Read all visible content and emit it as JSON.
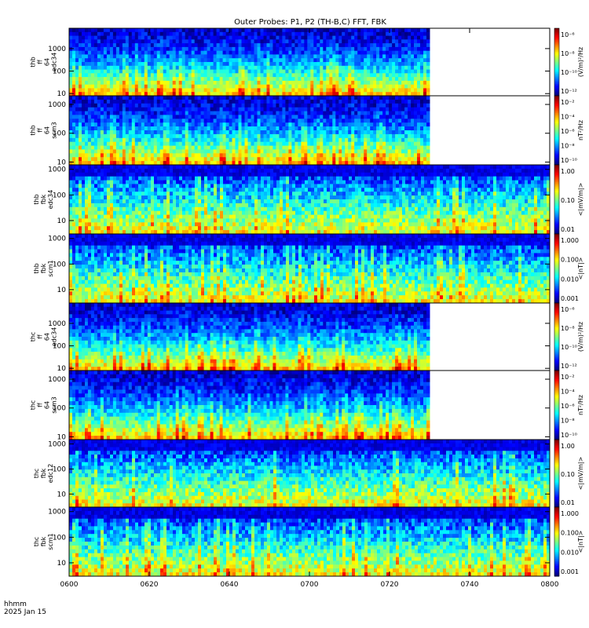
{
  "colors": {
    "background": "#ffffff",
    "frame": "#000000"
  },
  "chart_data": {
    "type": "heatmap",
    "title": "Outer Probes: P1, P2 (TH-B,C) FFT, FBK",
    "x_tick_labels": [
      "0600",
      "0620",
      "0640",
      "0700",
      "0720",
      "0740",
      "0800"
    ],
    "time_range": [
      "06:00",
      "08:00"
    ],
    "x_corner_label_1": "hhmm",
    "x_corner_label_2": "2025 Jan 15",
    "colormap": "rainbow",
    "panels": [
      {
        "ylabel": [
          "thb",
          "ff",
          "64",
          "edc34"
        ],
        "yscale": "log",
        "ylim": [
          8,
          8000
        ],
        "yticks": [
          "10",
          "100",
          "1000"
        ],
        "cbar_label": "(V/m)²/Hz",
        "cbar_scale": "log",
        "cbar_ticks": [
          "10⁻⁶",
          "10⁻⁸",
          "10⁻¹⁰",
          "10⁻¹²"
        ],
        "data_end": "07:30"
      },
      {
        "ylabel": [
          "thb",
          "ff",
          "64",
          "scm3"
        ],
        "yscale": "log",
        "ylim": [
          8,
          2000
        ],
        "yticks": [
          "10",
          "100",
          "1000"
        ],
        "cbar_label": "nT²/Hz",
        "cbar_scale": "log",
        "cbar_ticks": [
          "10⁻²",
          "10⁻⁴",
          "10⁻⁶",
          "10⁻⁸",
          "10⁻¹⁰"
        ],
        "data_end": "07:30"
      },
      {
        "ylabel": [
          "thb",
          "fbk",
          "edc34"
        ],
        "yscale": "log",
        "ylim": [
          3,
          1500
        ],
        "yticks": [
          "10",
          "100",
          "1000"
        ],
        "cbar_label": "<|mV/m|>",
        "cbar_scale": "log",
        "cbar_ticks": [
          "1.00",
          "0.10",
          "0.01"
        ],
        "data_end": "08:00"
      },
      {
        "ylabel": [
          "thb",
          "fbk",
          "scm1"
        ],
        "yscale": "log",
        "ylim": [
          3,
          1500
        ],
        "yticks": [
          "10",
          "100",
          "1000"
        ],
        "cbar_label": "<|nT|>",
        "cbar_scale": "log",
        "cbar_ticks": [
          "1.000",
          "0.100",
          "0.010",
          "0.001"
        ],
        "data_end": "08:00"
      },
      {
        "ylabel": [
          "thc",
          "ff",
          "64",
          "edc34"
        ],
        "yscale": "log",
        "ylim": [
          8,
          8000
        ],
        "yticks": [
          "10",
          "100",
          "1000"
        ],
        "cbar_label": "(V/m)²/Hz",
        "cbar_scale": "log",
        "cbar_ticks": [
          "10⁻⁶",
          "10⁻⁸",
          "10⁻¹⁰",
          "10⁻¹²"
        ],
        "data_end": "07:30"
      },
      {
        "ylabel": [
          "thc",
          "ff",
          "64",
          "scm3"
        ],
        "yscale": "log",
        "ylim": [
          8,
          2000
        ],
        "yticks": [
          "10",
          "100",
          "1000"
        ],
        "cbar_label": "nT²/Hz",
        "cbar_scale": "log",
        "cbar_ticks": [
          "10⁻²",
          "10⁻⁴",
          "10⁻⁶",
          "10⁻⁸",
          "10⁻¹⁰"
        ],
        "data_end": "07:30"
      },
      {
        "ylabel": [
          "thc",
          "fbk",
          "edc12"
        ],
        "yscale": "log",
        "ylim": [
          3,
          1500
        ],
        "yticks": [
          "10",
          "100",
          "1000"
        ],
        "cbar_label": "<|mV/m|>",
        "cbar_scale": "log",
        "cbar_ticks": [
          "1.00",
          "0.10",
          "0.01"
        ],
        "data_end": "08:00"
      },
      {
        "ylabel": [
          "thc",
          "fbk",
          "scm1"
        ],
        "yscale": "log",
        "ylim": [
          3,
          1500
        ],
        "yticks": [
          "10",
          "100",
          "1000"
        ],
        "cbar_label": "<|nT|>",
        "cbar_scale": "log",
        "cbar_ticks": [
          "1.000",
          "0.100",
          "0.010",
          "0.001"
        ],
        "data_end": "08:00"
      }
    ]
  }
}
